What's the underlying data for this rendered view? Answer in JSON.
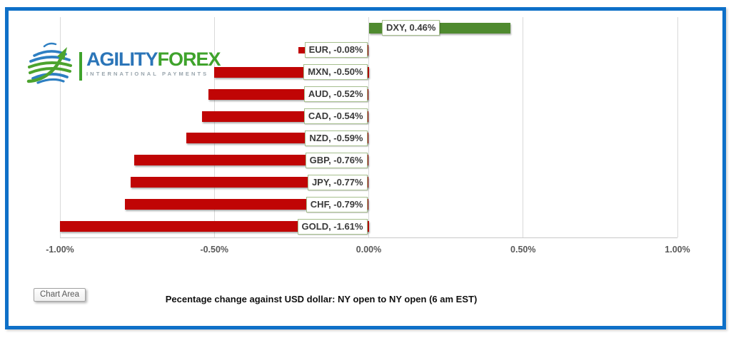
{
  "tooltip": {
    "label": "Chart Area"
  },
  "logo": {
    "brand_primary": "AGILITY",
    "brand_secondary": "FOREX",
    "tagline": "INTERNATIONAL PAYMENTS"
  },
  "chart_data": {
    "type": "bar",
    "orientation": "horizontal",
    "title": "Pecentage change against USD dollar: NY open to  NY open  (6 am EST)",
    "categories": [
      "DXY",
      "EUR",
      "MXN",
      "AUD",
      "CAD",
      "NZD",
      "GBP",
      "JPY",
      "CHF",
      "GOLD"
    ],
    "values": [
      0.46,
      -0.08,
      -0.5,
      -0.52,
      -0.54,
      -0.59,
      -0.76,
      -0.77,
      -0.79,
      -1.61
    ],
    "labels": [
      "DXY, 0.46%",
      "EUR, -0.08%",
      "MXN, -0.50%",
      "AUD, -0.52%",
      "CAD, -0.54%",
      "NZD, -0.59%",
      "GBP, -0.76%",
      "JPY, -0.77%",
      "CHF, -0.79%",
      "GOLD, -1.61%"
    ],
    "x_tick_labels": [
      "-1.00%",
      "-0.50%",
      "0.00%",
      "0.50%",
      "1.00%"
    ],
    "x_tick_values": [
      -1.0,
      -0.5,
      0,
      0.5,
      1.0
    ],
    "xlim": [
      -1.0,
      1.0
    ],
    "bar_clip_min": -1.0,
    "grid": true,
    "legend_position": "none",
    "legend_key_shown_for": "EUR",
    "colors": {
      "positive": "#4F8A2F",
      "negative": "#C00505"
    }
  },
  "colors": {
    "frame": "#0E70C8",
    "gridline": "#D9D9D9",
    "axis_text": "#595959",
    "label_text": "#3A3A3A",
    "label_border": "#A6BF8E",
    "logo_blue": "#2B75B8",
    "logo_green": "#3FA32C",
    "tagline_gray": "#98A4AC"
  }
}
